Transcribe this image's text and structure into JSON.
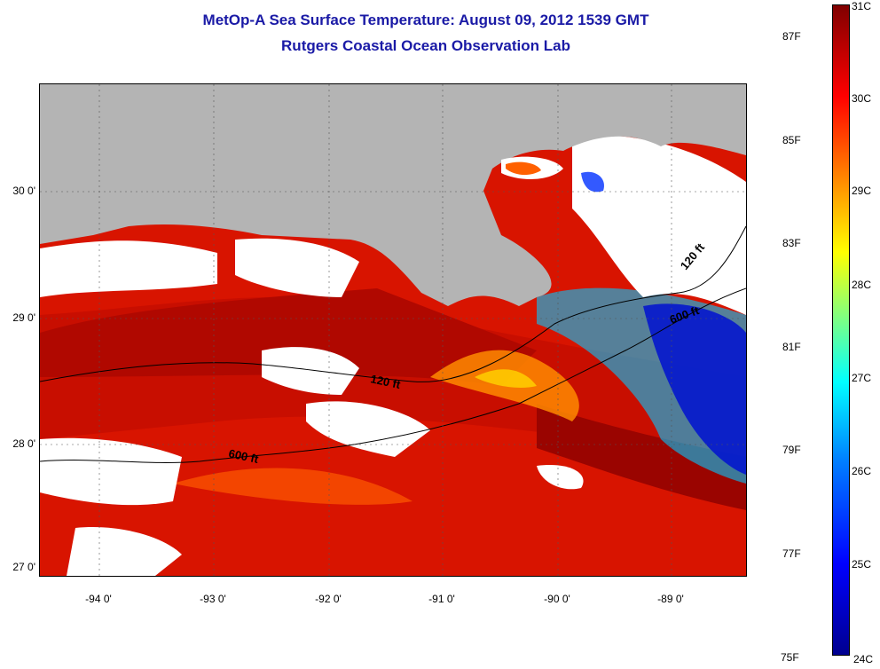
{
  "header": {
    "title": "MetOp-A Sea Surface Temperature:  August 09, 2012 1539 GMT",
    "subtitle": "Rutgers Coastal Ocean Observation Lab"
  },
  "map": {
    "lat_labels": [
      "30 0'",
      "29 0'",
      "28 0'",
      "27 0'"
    ],
    "lon_labels": [
      "-94 0'",
      "-93 0'",
      "-92 0'",
      "-91 0'",
      "-90 0'",
      "-89 0'"
    ],
    "contour_labels": [
      "120 ft",
      "600 ft",
      "120 ft",
      "600 ft"
    ],
    "colors": {
      "land": "#b4b4b4",
      "cloud": "#ffffff",
      "warm": "#d81400",
      "hot": "#a00000"
    }
  },
  "colorbar": {
    "celsius_labels": [
      "31C",
      "30C",
      "29C",
      "28C",
      "27C",
      "26C",
      "25C",
      "24C"
    ],
    "fahrenheit_labels": [
      "87F",
      "85F",
      "83F",
      "81F",
      "79F",
      "77F",
      "75F"
    ],
    "range_c": [
      24,
      31
    ]
  }
}
